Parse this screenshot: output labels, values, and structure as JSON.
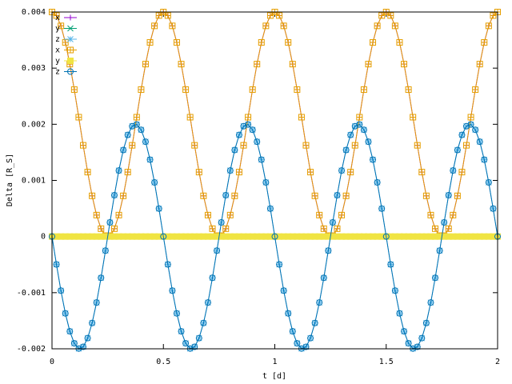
{
  "chart_data": {
    "type": "line",
    "xlabel": "t [d]",
    "ylabel": "Delta [R_S]",
    "xlim": [
      0,
      2
    ],
    "xticks": [
      0,
      0.5,
      1,
      1.5,
      2
    ],
    "ylim": [
      -0.002,
      0.004
    ],
    "yticks": [
      -0.002,
      -0.001,
      0,
      0.001,
      0.002,
      0.003,
      0.004
    ],
    "grid": false,
    "legend": "top-left",
    "x": [
      0,
      0.02,
      0.04,
      0.06,
      0.08,
      0.1,
      0.12,
      0.14,
      0.16,
      0.18,
      0.2,
      0.22,
      0.24,
      0.26,
      0.28,
      0.3,
      0.32,
      0.34,
      0.36,
      0.38,
      0.4,
      0.42,
      0.44,
      0.46,
      0.48,
      0.5,
      0.52,
      0.54,
      0.56,
      0.58,
      0.6,
      0.62,
      0.64,
      0.66,
      0.68,
      0.7,
      0.72,
      0.74,
      0.76,
      0.78,
      0.8,
      0.82,
      0.84,
      0.86,
      0.88,
      0.9,
      0.92,
      0.94,
      0.96,
      0.98,
      1,
      1.02,
      1.04,
      1.06,
      1.08,
      1.1,
      1.12,
      1.14,
      1.16,
      1.18,
      1.2,
      1.22,
      1.24,
      1.26,
      1.28,
      1.3,
      1.32,
      1.34,
      1.36,
      1.38,
      1.4,
      1.42,
      1.44,
      1.46,
      1.48,
      1.5,
      1.52,
      1.54,
      1.56,
      1.58,
      1.6,
      1.62,
      1.64,
      1.66,
      1.68,
      1.7,
      1.72,
      1.74,
      1.76,
      1.78,
      1.8,
      1.82,
      1.84,
      1.86,
      1.88,
      1.9,
      1.92,
      1.94,
      1.96,
      1.98,
      2
    ],
    "series": [
      {
        "name": "x",
        "color": "#9400d3",
        "marker": "plus",
        "values": [
          0.004,
          0.003937,
          0.003753,
          0.003458,
          0.003072,
          0.002618,
          0.002126,
          0.001625,
          0.001148,
          0.000725,
          0.000382,
          0.00014,
          1.6e-05,
          1.6e-05,
          0.00014,
          0.000382,
          0.000725,
          0.001148,
          0.001625,
          0.002126,
          0.002618,
          0.003072,
          0.003458,
          0.003753,
          0.003937,
          0.004,
          0.003937,
          0.003753,
          0.003458,
          0.003072,
          0.002618,
          0.002126,
          0.001625,
          0.001148,
          0.000725,
          0.000382,
          0.00014,
          1.6e-05,
          1.6e-05,
          0.00014,
          0.000382,
          0.000725,
          0.001148,
          0.001625,
          0.002126,
          0.002618,
          0.003072,
          0.003458,
          0.003753,
          0.003937,
          0.004,
          0.003937,
          0.003753,
          0.003458,
          0.003072,
          0.002618,
          0.002126,
          0.001625,
          0.001148,
          0.000725,
          0.000382,
          0.00014,
          1.6e-05,
          1.6e-05,
          0.00014,
          0.000382,
          0.000725,
          0.001148,
          0.001625,
          0.002126,
          0.002618,
          0.003072,
          0.003458,
          0.003753,
          0.003937,
          0.004,
          0.003937,
          0.003753,
          0.003458,
          0.003072,
          0.002618,
          0.002126,
          0.001625,
          0.001148,
          0.000725,
          0.000382,
          0.00014,
          1.6e-05,
          1.6e-05,
          0.00014,
          0.000382,
          0.000725,
          0.001148,
          0.001625,
          0.002126,
          0.002618,
          0.003072,
          0.003458,
          0.003753,
          0.003937,
          0.004
        ]
      },
      {
        "name": "y",
        "color": "#009e73",
        "marker": "cross",
        "values": [
          0,
          0,
          0,
          0,
          0,
          0,
          0,
          0,
          0,
          0,
          0,
          0,
          0,
          0,
          0,
          0,
          0,
          0,
          0,
          0,
          0,
          0,
          0,
          0,
          0,
          0,
          0,
          0,
          0,
          0,
          0,
          0,
          0,
          0,
          0,
          0,
          0,
          0,
          0,
          0,
          0,
          0,
          0,
          0,
          0,
          0,
          0,
          0,
          0,
          0,
          0,
          0,
          0,
          0,
          0,
          0,
          0,
          0,
          0,
          0,
          0,
          0,
          0,
          0,
          0,
          0,
          0,
          0,
          0,
          0,
          0,
          0,
          0,
          0,
          0,
          0,
          0,
          0,
          0,
          0,
          0,
          0,
          0,
          0,
          0,
          0,
          0,
          0,
          0,
          0,
          0,
          0,
          0,
          0,
          0,
          0,
          0,
          0,
          0,
          0,
          0
        ]
      },
      {
        "name": "z",
        "color": "#56b4e9",
        "marker": "star",
        "values": [
          0,
          -0.000497,
          -0.000964,
          -0.001369,
          -0.001689,
          -0.001902,
          -0.001996,
          -0.001965,
          -0.00181,
          -0.001541,
          -0.001176,
          -0.000736,
          -0.000251,
          0.000251,
          0.000736,
          0.001176,
          0.001541,
          0.00181,
          0.001965,
          0.001996,
          0.001902,
          0.001689,
          0.001369,
          0.000964,
          0.000497,
          0,
          -0.000497,
          -0.000964,
          -0.001369,
          -0.001689,
          -0.001902,
          -0.001996,
          -0.001965,
          -0.00181,
          -0.001541,
          -0.001176,
          -0.000736,
          -0.000251,
          0.000251,
          0.000736,
          0.001176,
          0.001541,
          0.00181,
          0.001965,
          0.001996,
          0.001902,
          0.001689,
          0.001369,
          0.000964,
          0.000497,
          0,
          -0.000497,
          -0.000964,
          -0.001369,
          -0.001689,
          -0.001902,
          -0.001996,
          -0.001965,
          -0.00181,
          -0.001541,
          -0.001176,
          -0.000736,
          -0.000251,
          0.000251,
          0.000736,
          0.001176,
          0.001541,
          0.00181,
          0.001965,
          0.001996,
          0.001902,
          0.001689,
          0.001369,
          0.000964,
          0.000497,
          0,
          -0.000497,
          -0.000964,
          -0.001369,
          -0.001689,
          -0.001902,
          -0.001996,
          -0.001965,
          -0.00181,
          -0.001541,
          -0.001176,
          -0.000736,
          -0.000251,
          0.000251,
          0.000736,
          0.001176,
          0.001541,
          0.00181,
          0.001965,
          0.001996,
          0.001902,
          0.001689,
          0.001369,
          0.000964,
          0.000497,
          0
        ]
      },
      {
        "name": "x",
        "color": "#e69f00",
        "marker": "box",
        "values": [
          0.004,
          0.003937,
          0.003753,
          0.003458,
          0.003072,
          0.002618,
          0.002126,
          0.001625,
          0.001148,
          0.000725,
          0.000382,
          0.00014,
          1.6e-05,
          1.6e-05,
          0.00014,
          0.000382,
          0.000725,
          0.001148,
          0.001625,
          0.002126,
          0.002618,
          0.003072,
          0.003458,
          0.003753,
          0.003937,
          0.004,
          0.003937,
          0.003753,
          0.003458,
          0.003072,
          0.002618,
          0.002126,
          0.001625,
          0.001148,
          0.000725,
          0.000382,
          0.00014,
          1.6e-05,
          1.6e-05,
          0.00014,
          0.000382,
          0.000725,
          0.001148,
          0.001625,
          0.002126,
          0.002618,
          0.003072,
          0.003458,
          0.003753,
          0.003937,
          0.004,
          0.003937,
          0.003753,
          0.003458,
          0.003072,
          0.002618,
          0.002126,
          0.001625,
          0.001148,
          0.000725,
          0.000382,
          0.00014,
          1.6e-05,
          1.6e-05,
          0.00014,
          0.000382,
          0.000725,
          0.001148,
          0.001625,
          0.002126,
          0.002618,
          0.003072,
          0.003458,
          0.003753,
          0.003937,
          0.004,
          0.003937,
          0.003753,
          0.003458,
          0.003072,
          0.002618,
          0.002126,
          0.001625,
          0.001148,
          0.000725,
          0.000382,
          0.00014,
          1.6e-05,
          1.6e-05,
          0.00014,
          0.000382,
          0.000725,
          0.001148,
          0.001625,
          0.002126,
          0.002618,
          0.003072,
          0.003458,
          0.003753,
          0.003937,
          0.004
        ]
      },
      {
        "name": "y",
        "color": "#f0e442",
        "marker": "filledbox",
        "values": [
          0,
          0,
          0,
          0,
          0,
          0,
          0,
          0,
          0,
          0,
          0,
          0,
          0,
          0,
          0,
          0,
          0,
          0,
          0,
          0,
          0,
          0,
          0,
          0,
          0,
          0,
          0,
          0,
          0,
          0,
          0,
          0,
          0,
          0,
          0,
          0,
          0,
          0,
          0,
          0,
          0,
          0,
          0,
          0,
          0,
          0,
          0,
          0,
          0,
          0,
          0,
          0,
          0,
          0,
          0,
          0,
          0,
          0,
          0,
          0,
          0,
          0,
          0,
          0,
          0,
          0,
          0,
          0,
          0,
          0,
          0,
          0,
          0,
          0,
          0,
          0,
          0,
          0,
          0,
          0,
          0,
          0,
          0,
          0,
          0,
          0,
          0,
          0,
          0,
          0,
          0,
          0,
          0,
          0,
          0,
          0,
          0,
          0,
          0,
          0,
          0
        ]
      },
      {
        "name": "z",
        "color": "#0072b2",
        "marker": "circle",
        "values": [
          0,
          -0.000497,
          -0.000964,
          -0.001369,
          -0.001689,
          -0.001902,
          -0.001996,
          -0.001965,
          -0.00181,
          -0.001541,
          -0.001176,
          -0.000736,
          -0.000251,
          0.000251,
          0.000736,
          0.001176,
          0.001541,
          0.00181,
          0.001965,
          0.001996,
          0.001902,
          0.001689,
          0.001369,
          0.000964,
          0.000497,
          0,
          -0.000497,
          -0.000964,
          -0.001369,
          -0.001689,
          -0.001902,
          -0.001996,
          -0.001965,
          -0.00181,
          -0.001541,
          -0.001176,
          -0.000736,
          -0.000251,
          0.000251,
          0.000736,
          0.001176,
          0.001541,
          0.00181,
          0.001965,
          0.001996,
          0.001902,
          0.001689,
          0.001369,
          0.000964,
          0.000497,
          0,
          -0.000497,
          -0.000964,
          -0.001369,
          -0.001689,
          -0.001902,
          -0.001996,
          -0.001965,
          -0.00181,
          -0.001541,
          -0.001176,
          -0.000736,
          -0.000251,
          0.000251,
          0.000736,
          0.001176,
          0.001541,
          0.00181,
          0.001965,
          0.001996,
          0.001902,
          0.001689,
          0.001369,
          0.000964,
          0.000497,
          0,
          -0.000497,
          -0.000964,
          -0.001369,
          -0.001689,
          -0.001902,
          -0.001996,
          -0.001965,
          -0.00181,
          -0.001541,
          -0.001176,
          -0.000736,
          -0.000251,
          0.000251,
          0.000736,
          0.001176,
          0.001541,
          0.00181,
          0.001965,
          0.001996,
          0.001902,
          0.001689,
          0.001369,
          0.000964,
          0.000497,
          0
        ]
      }
    ]
  }
}
